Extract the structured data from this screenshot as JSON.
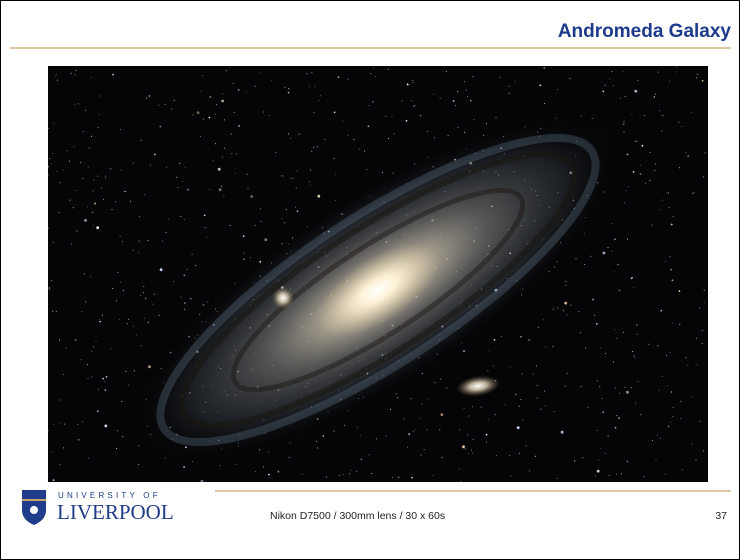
{
  "header": {
    "title": "Andromeda Galaxy"
  },
  "footer": {
    "logo_top": "UNIVERSITY OF",
    "logo_name": "LIVERPOOL",
    "caption": "Nikon D7500 / 300mm lens / 30 x 60s",
    "page_number": "37"
  }
}
